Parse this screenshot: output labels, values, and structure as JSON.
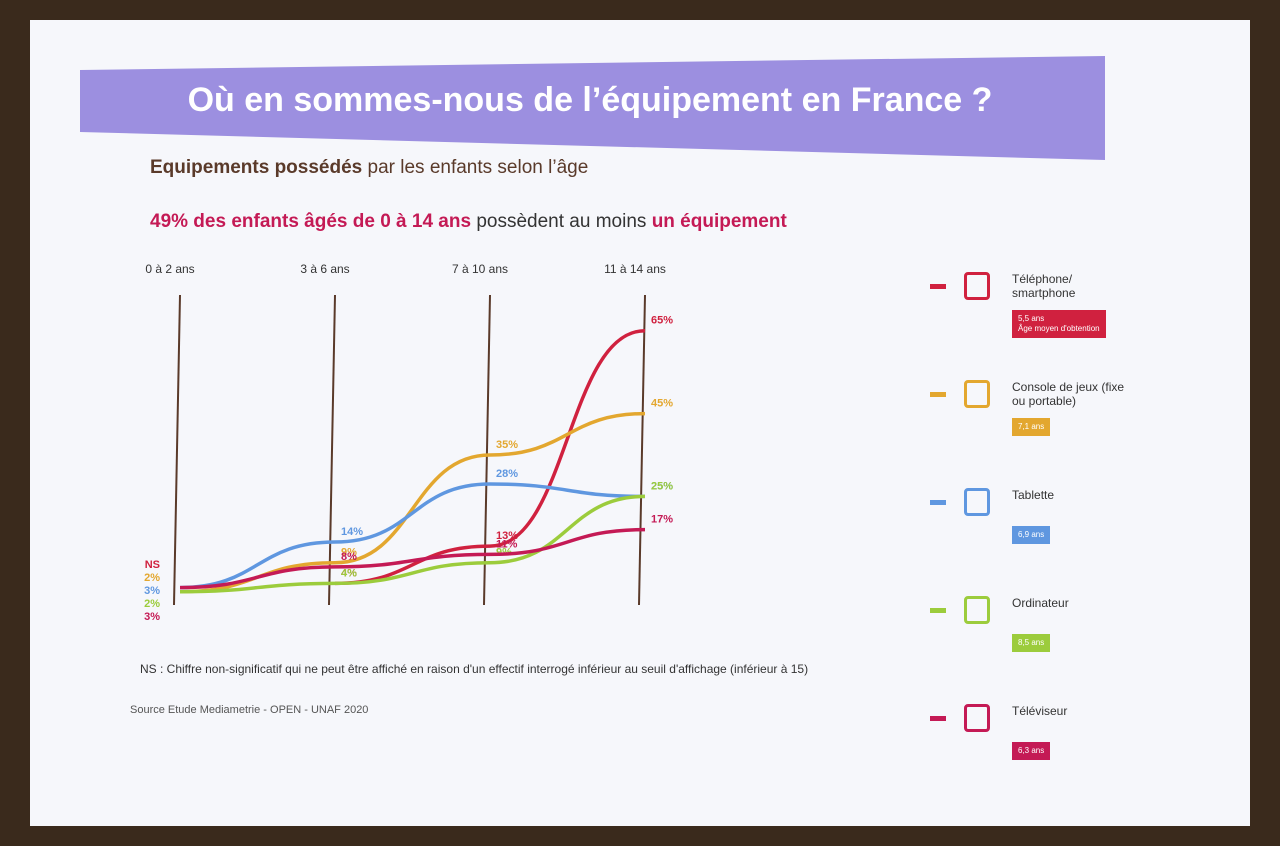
{
  "chart_data": {
    "type": "line",
    "title": "Où en sommes-nous de l’équipement en France ?",
    "subtitle_bold": "Equipements possédés",
    "subtitle_rest": " par les enfants selon l’âge",
    "headline_bold": "49% des enfants âgés de 0 à 14 ans",
    "headline_mid": " possèdent au moins ",
    "headline_end": "un équipement",
    "categories": [
      "0 à 2 ans",
      "3 à 6 ans",
      "7 à 10 ans",
      "11 à 14 ans"
    ],
    "ylim": [
      0,
      70
    ],
    "series": [
      {
        "name": "Téléphone/ smartphone",
        "color": "#d0213f",
        "values": [
          null,
          4,
          13,
          65
        ],
        "value_labels": [
          "NS",
          "4%",
          "13%",
          "65%"
        ],
        "badge": [
          "5,5 ans",
          "Âge moyen d'obtention"
        ]
      },
      {
        "name": "Console de jeux (fixe ou portable)",
        "color": "#e3a72f",
        "values": [
          2,
          9,
          35,
          45
        ],
        "value_labels": [
          "2%",
          "9%",
          "35%",
          "45%"
        ],
        "badge": [
          "7,1 ans"
        ]
      },
      {
        "name": "Tablette",
        "color": "#5f97e0",
        "values": [
          3,
          14,
          28,
          25
        ],
        "value_labels": [
          "3%",
          "14%",
          "28%",
          "25%"
        ],
        "badge": [
          "6,9 ans"
        ]
      },
      {
        "name": "Ordinateur",
        "color": "#9ccc3c",
        "values": [
          2,
          4,
          9,
          25
        ],
        "value_labels": [
          "2%",
          "4%",
          "9%",
          "25%"
        ],
        "badge": [
          "8,5 ans"
        ]
      },
      {
        "name": "Téléviseur",
        "color": "#c41a55",
        "values": [
          3,
          8,
          11,
          17
        ],
        "value_labels": [
          "3%",
          "8%",
          "11%",
          "17%"
        ],
        "badge": [
          "6,3 ans"
        ]
      }
    ],
    "note": "NS : Chiffre non-significatif qui ne peut être affiché en raison d'un effectif interrogé inférieur au seuil d'affichage (inférieur à 15)",
    "source": "Source Etude Mediametrie - OPEN - UNAF 2020"
  }
}
